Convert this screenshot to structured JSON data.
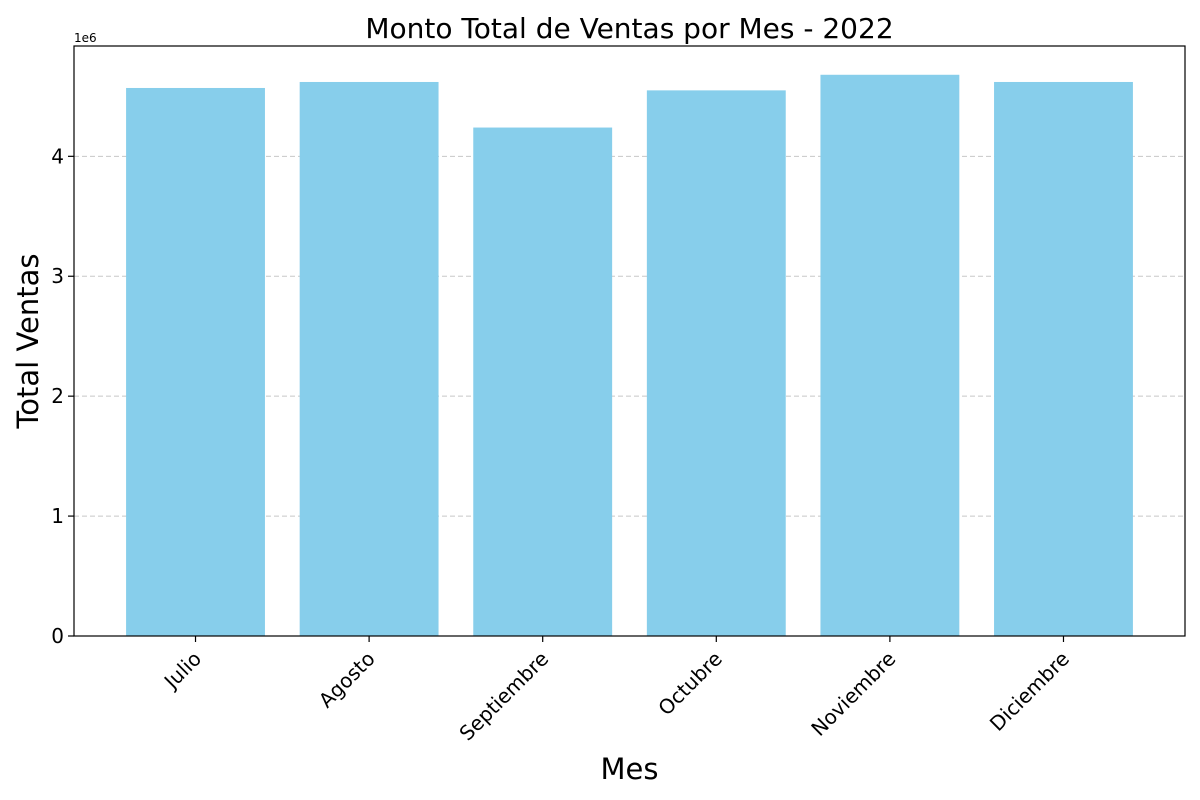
{
  "chart_data": {
    "type": "bar",
    "title": "Monto Total de Ventas por Mes - 2022",
    "xlabel": "Mes",
    "ylabel": "Total Ventas",
    "y_offset_label": "1e6",
    "y_multiplier": 1000000,
    "categories": [
      "Julio",
      "Agosto",
      "Septiembre",
      "Octubre",
      "Noviembre",
      "Diciembre"
    ],
    "values": [
      4570000,
      4620000,
      4240000,
      4550000,
      4680000,
      4620000
    ],
    "ylim": [
      0,
      4920000
    ],
    "yticks": [
      0,
      1000000,
      2000000,
      3000000,
      4000000
    ],
    "ytick_labels": [
      "0",
      "1",
      "2",
      "3",
      "4"
    ],
    "grid": "y-dashed",
    "bar_color": "#87CEEB",
    "grid_color": "#c8c8c8",
    "xtick_rotation": 45
  }
}
